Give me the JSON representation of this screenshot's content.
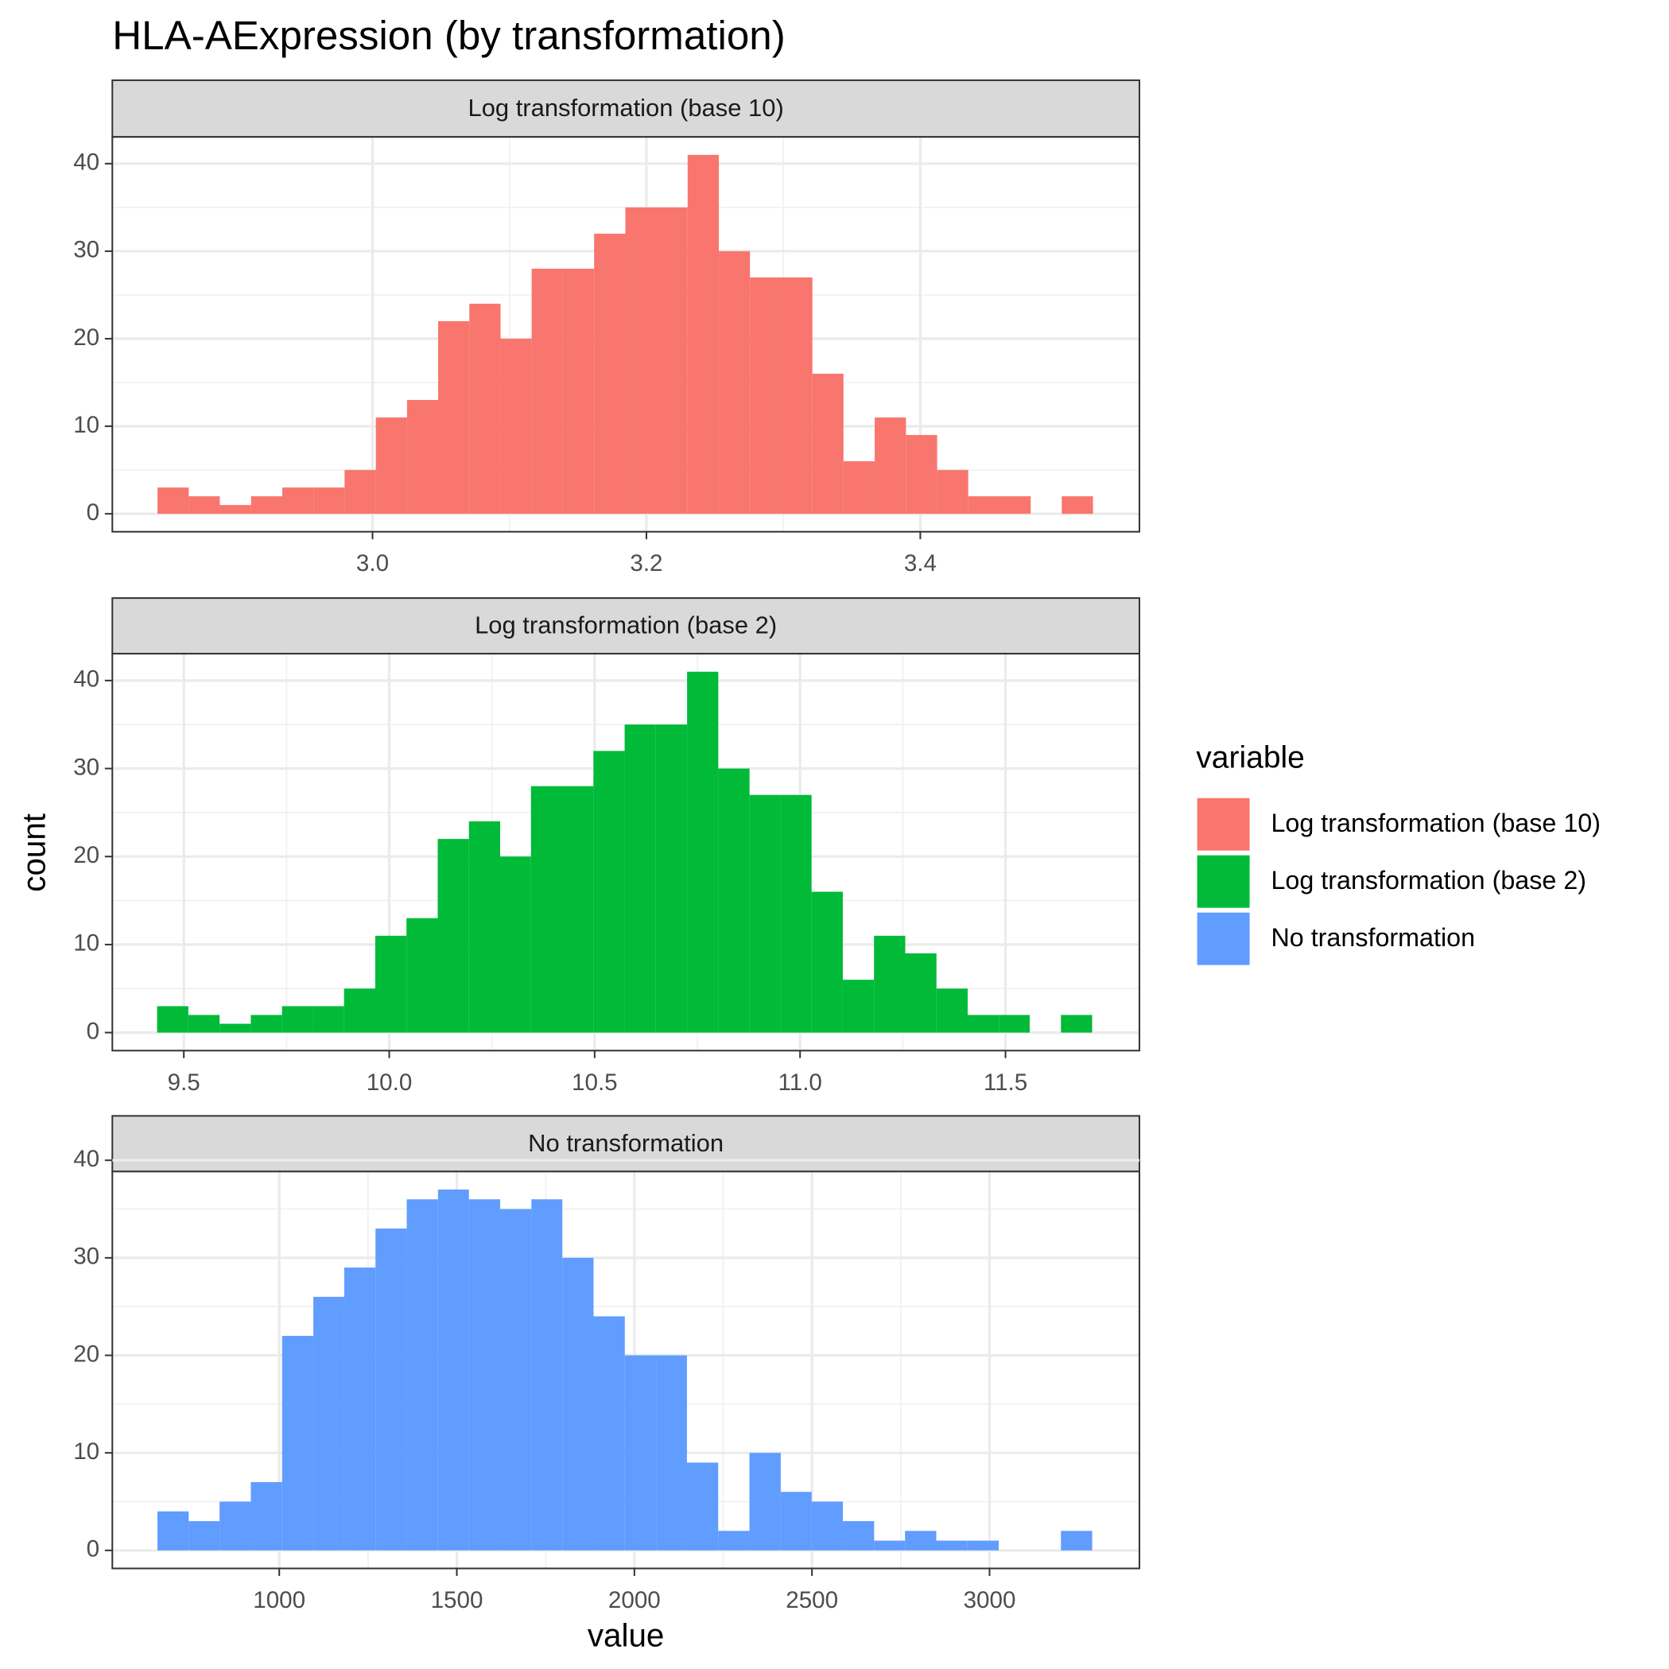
{
  "title": "HLA-AExpression (by transformation)",
  "x_label": "value",
  "y_label": "count",
  "legend_title": "variable",
  "chart_data": [
    {
      "type": "histogram",
      "name": "Log transformation (base 10)",
      "color": "#f8766d",
      "bins": [
        2.843,
        2.8658,
        2.8885,
        2.9113,
        2.9341,
        2.9569,
        2.9796,
        3.0024,
        3.0252,
        3.0479,
        3.0707,
        3.0935,
        3.1162,
        3.139,
        3.1618,
        3.1846,
        3.2073,
        3.2301,
        3.2529,
        3.2756,
        3.2984,
        3.3212,
        3.3439,
        3.3667,
        3.3895,
        3.4123,
        3.435,
        3.4578,
        3.4806,
        3.5033,
        3.5261
      ],
      "values": [
        3,
        2,
        1,
        2,
        3,
        3,
        5,
        11,
        13,
        22,
        24,
        20,
        28,
        28,
        32,
        35,
        35,
        41,
        30,
        27,
        27,
        16,
        6,
        11,
        9,
        5,
        2,
        2,
        0,
        2
      ],
      "xlim": [
        2.81,
        3.56
      ],
      "ylim": [
        -2.05,
        43.05
      ],
      "xticks": [
        {
          "value": 3,
          "label": "3.0"
        },
        3.2,
        3.4
      ],
      "yticks": [
        0,
        10,
        20,
        30,
        40
      ],
      "grid": true
    },
    {
      "type": "histogram",
      "name": "Log transformation (base 2)",
      "color": "#00ba38",
      "bins": [
        9.435,
        9.511,
        9.587,
        9.663,
        9.739,
        9.814,
        9.89,
        9.966,
        10.042,
        10.118,
        10.194,
        10.27,
        10.345,
        10.421,
        10.497,
        10.573,
        10.649,
        10.725,
        10.801,
        10.877,
        10.952,
        11.028,
        11.104,
        11.18,
        11.256,
        11.332,
        11.408,
        11.484,
        11.559,
        11.635,
        11.711
      ],
      "values": [
        3,
        2,
        1,
        2,
        3,
        3,
        5,
        11,
        13,
        22,
        24,
        20,
        28,
        28,
        32,
        35,
        35,
        41,
        30,
        27,
        27,
        16,
        6,
        11,
        9,
        5,
        2,
        2,
        0,
        2
      ],
      "xlim": [
        9.326,
        11.826
      ],
      "ylim": [
        -2.05,
        43.05
      ],
      "xticks": [
        9.5,
        {
          "value": 10,
          "label": "10.0"
        },
        10.5,
        {
          "value": 11,
          "label": "11.0"
        },
        11.5
      ],
      "yticks": [
        0,
        10,
        20,
        30,
        40
      ],
      "grid": true
    },
    {
      "type": "histogram",
      "name": "No transformation",
      "color": "#619cff",
      "bins": [
        657,
        745,
        832,
        920,
        1008,
        1096,
        1183,
        1271,
        1359,
        1447,
        1534,
        1622,
        1710,
        1797,
        1885,
        1973,
        2061,
        2148,
        2236,
        2324,
        2412,
        2499,
        2587,
        2675,
        2762,
        2850,
        2938,
        3026,
        3113,
        3201,
        3289
      ],
      "values": [
        4,
        3,
        5,
        7,
        22,
        26,
        29,
        33,
        36,
        37,
        36,
        35,
        36,
        30,
        24,
        20,
        20,
        9,
        2,
        10,
        6,
        5,
        3,
        1,
        2,
        1,
        1,
        0,
        0,
        2
      ],
      "xlim": [
        530,
        3422
      ],
      "ylim": [
        -1.85,
        38.85
      ],
      "xticks": [
        1000,
        1500,
        2000,
        2500,
        3000
      ],
      "yticks": [
        0,
        10,
        20,
        30,
        40
      ],
      "grid": true
    }
  ]
}
